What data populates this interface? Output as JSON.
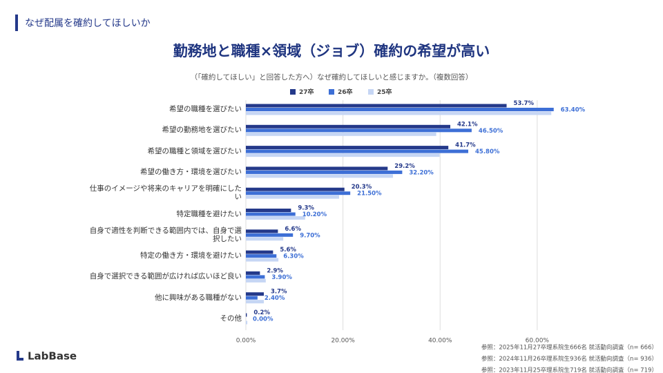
{
  "header": "なぜ配属を確約してほしいか",
  "logo": "LabBase",
  "footnotes": [
    "参照：2025年11月27卒理系院生666名 就活動向調査（n= 666）",
    "参照：2024年11月26卒理系院生936名 就活動向調査（n= 936）",
    "参照：2023年11月25卒理系院生719名 就活動向調査（n= 719）"
  ],
  "chart_data": {
    "type": "hbar",
    "title": "勤務地と職種×領域（ジョブ）確約の希望が高い",
    "subtitle": "（「確約してほしい」と回答した方へ）なぜ確約してほしいと感じますか。（複数回答）",
    "categories": [
      "希望の職種を選びたい",
      "希望の勤務地を選びたい",
      "希望の職種と領域を選びたい",
      "希望の働き方・環境を選びたい",
      "仕事のイメージや将来のキャリアを明確にしたい",
      "特定職種を避けたい",
      "自身で適性を判断できる範囲内では、自身で選択したい",
      "特定の働き方・環境を避けたい",
      "自身で選択できる範囲が広ければ広いほど良い",
      "他に興味がある職種がない",
      "その他"
    ],
    "series": [
      {
        "name": "27卒",
        "color": "#24398a",
        "values": [
          53.7,
          42.1,
          41.7,
          29.2,
          20.3,
          9.3,
          6.6,
          5.6,
          2.9,
          3.7,
          0.2
        ],
        "value_labels": [
          "53.7%",
          "42.1%",
          "41.7%",
          "29.2%",
          "20.3%",
          "9.3%",
          "6.6%",
          "5.6%",
          "2.9%",
          "3.7%",
          "0.2%"
        ]
      },
      {
        "name": "26卒",
        "color": "#3d6fd6",
        "values": [
          63.4,
          46.5,
          45.8,
          32.2,
          21.5,
          10.2,
          9.7,
          6.3,
          3.9,
          2.4,
          0
        ],
        "value_labels": [
          "63.40%",
          "46.50%",
          "45.80%",
          "32.20%",
          "21.50%",
          "10.20%",
          "9.70%",
          "6.30%",
          "3.90%",
          "2.40%",
          "0.00%"
        ]
      },
      {
        "name": "25卒",
        "color": "#c6d6f4",
        "values": [
          62.9,
          39.2,
          39.9,
          30.3,
          19.2,
          12.2,
          7.7,
          6.7,
          4.1,
          3.7,
          0.3
        ]
      }
    ],
    "xlim": [
      0,
      65
    ],
    "xticks": [
      {
        "value": 0,
        "label": "0.00%"
      },
      {
        "value": 20,
        "label": "20.00%"
      },
      {
        "value": 40,
        "label": "40.00%"
      },
      {
        "value": 60,
        "label": "60.00%"
      }
    ],
    "grid": true,
    "legend": "top"
  }
}
